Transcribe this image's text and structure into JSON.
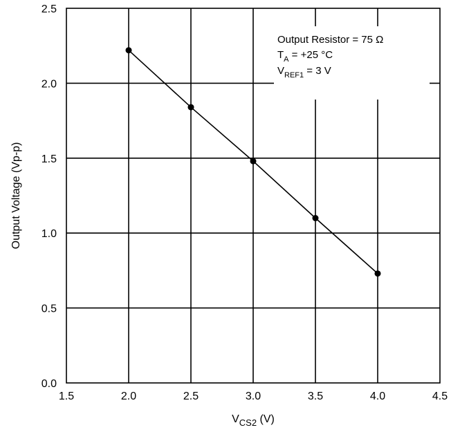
{
  "chart_data": {
    "type": "line",
    "xlabel": {
      "main": "V",
      "sub": "CS2",
      "unit": " (V)"
    },
    "ylabel": "Output Voltage (Vp-p)",
    "xlim": [
      1.5,
      4.5
    ],
    "ylim": [
      0.0,
      2.5
    ],
    "x_ticks": [
      "1.5",
      "2.0",
      "2.5",
      "3.0",
      "3.5",
      "4.0",
      "4.5"
    ],
    "y_ticks": [
      "0.0",
      "0.5",
      "1.0",
      "1.5",
      "2.0",
      "2.5"
    ],
    "grid": true,
    "series": [
      {
        "x": [
          2.0,
          2.5,
          3.0,
          3.5,
          4.0
        ],
        "y": [
          2.22,
          1.84,
          1.48,
          1.1,
          0.73
        ],
        "color": "#000000",
        "markers": true
      }
    ],
    "annotations": [
      {
        "main": "Output Resistor = 75 Ω",
        "sub": "",
        "rest": ""
      },
      {
        "main": "T",
        "sub": "A",
        "rest": " = +25 °C"
      },
      {
        "main": "V",
        "sub": "REF1",
        "rest": " = 3 V"
      }
    ],
    "annotation_position": "top-right"
  }
}
